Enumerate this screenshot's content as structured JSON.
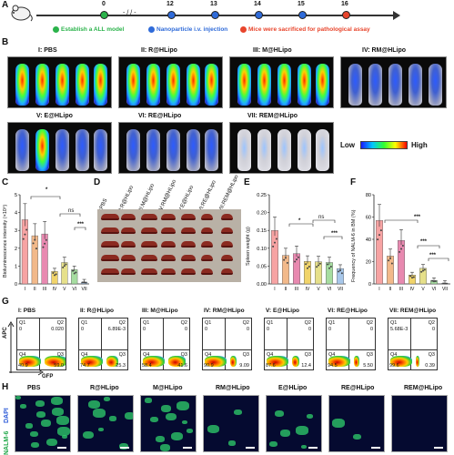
{
  "panelA": {
    "letter": "A",
    "days": [
      "0",
      "12",
      "13",
      "14",
      "15",
      "16"
    ],
    "legend": {
      "green": "Establish a ALL model",
      "blue": "Nanoparticle i.v. injection",
      "red": "Mice were sacrificed for pathological assay"
    },
    "colors": {
      "green": "#2bb34b",
      "blue": "#2f6bd9",
      "red": "#e8452c"
    }
  },
  "panelB": {
    "letter": "B",
    "groups": [
      "I: PBS",
      "II: R@HLipo",
      "III: M@HLipo",
      "IV: RM@HLipo",
      "V: E@HLipo",
      "VI: RE@HLipo",
      "VII: REM@HLipo"
    ],
    "colorbar_low": "Low",
    "colorbar_high": "High"
  },
  "panelC": {
    "letter": "C",
    "ylabel": "Bioluminescence intensity (×10⁹)",
    "ns": "ns",
    "sig1": "*",
    "sig2": "***"
  },
  "panelD": {
    "letter": "D",
    "labels": [
      "I:PBS",
      "II:R@HLipo",
      "III:M@HLipo",
      "IV:RM@HLipo",
      "V:E@HLipo",
      "VI:RE@HLipo",
      "VII:REM@HLipo"
    ]
  },
  "panelE": {
    "letter": "E",
    "ylabel": "Spleen weight (g)",
    "ns": "ns",
    "sig1": "*",
    "sig2": "***"
  },
  "panelF": {
    "letter": "F",
    "ylabel": "Frequency of NALM-6 in BM (%)",
    "sig1": "***",
    "sig2": "***",
    "sig3": "***"
  },
  "panelG": {
    "letter": "G",
    "yaxis": "APC",
    "xaxis": "GFP",
    "plots": [
      {
        "title": "I: PBS",
        "q2": "0.020",
        "q3": "59.0",
        "q4": "40.9",
        "q1": "0"
      },
      {
        "title": "II: R@HLipo",
        "q2": "6.89E-3",
        "q3": "25.3",
        "q4": "74.7",
        "q1": "0"
      },
      {
        "title": "III: M@HLipo",
        "q2": "0",
        "q3": "41.6",
        "q4": "58.4",
        "q1": "0"
      },
      {
        "title": "IV: RM@HLipo",
        "q2": "0",
        "q3": "9.09",
        "q4": "90.9",
        "q1": "0"
      },
      {
        "title": "V: E@HLipo",
        "q2": "0",
        "q3": "12.4",
        "q4": "87.6",
        "q1": "0"
      },
      {
        "title": "VI: RE@HLipo",
        "q2": "0",
        "q3": "5.50",
        "q4": "94.5",
        "q1": "0"
      },
      {
        "title": "VII: REM@HLipo",
        "q2": "0",
        "q3": "0.39",
        "q4": "99.6",
        "q1": "5.68E-3"
      }
    ],
    "qlabels": {
      "q1": "Q1",
      "q2": "Q2",
      "q3": "Q3",
      "q4": "Q4"
    }
  },
  "panelH": {
    "letter": "H",
    "titles": [
      "PBS",
      "R@HLipo",
      "M@HLipo",
      "RM@HLipo",
      "E@HLipo",
      "RE@HLipo",
      "REM@HLipo"
    ],
    "stain_dapi": "DAPI",
    "stain_nalm": "NALM-6"
  },
  "chart_data": [
    {
      "type": "bar",
      "panel": "C",
      "categories": [
        "I",
        "II",
        "III",
        "IV",
        "V",
        "VI",
        "VII"
      ],
      "values": [
        3.6,
        2.7,
        2.8,
        0.7,
        1.2,
        0.8,
        0.1
      ],
      "ylabel": "Bioluminescence intensity (×10⁹)",
      "ylim": [
        0,
        5
      ],
      "yticks": [
        "0",
        "1",
        "2",
        "3",
        "4",
        "5"
      ],
      "colors": [
        "#f7a3a3",
        "#f2b98a",
        "#e889b0",
        "#f1d46a",
        "#e6e08a",
        "#a6dda0",
        "#a7c7ea"
      ]
    },
    {
      "type": "bar",
      "panel": "E",
      "categories": [
        "I",
        "II",
        "III",
        "IV",
        "V",
        "VI",
        "VII"
      ],
      "values": [
        0.15,
        0.08,
        0.085,
        0.063,
        0.062,
        0.06,
        0.043
      ],
      "ylabel": "Spleen weight (g)",
      "ylim": [
        0,
        0.25
      ],
      "yticks": [
        "0.00",
        "0.05",
        "0.10",
        "0.15",
        "0.20",
        "0.25"
      ],
      "colors": [
        "#f7a3a3",
        "#f2b98a",
        "#e889b0",
        "#f1d46a",
        "#e6e08a",
        "#a6dda0",
        "#a7c7ea"
      ]
    },
    {
      "type": "bar",
      "panel": "F",
      "categories": [
        "I",
        "II",
        "III",
        "IV",
        "V",
        "VI",
        "VII"
      ],
      "values": [
        57,
        25,
        39,
        8,
        14,
        3,
        0.5
      ],
      "ylabel": "Frequency of NALM-6 in BM (%)",
      "ylim": [
        0,
        80
      ],
      "yticks": [
        "0",
        "20",
        "40",
        "60",
        "80"
      ],
      "colors": [
        "#f7a3a3",
        "#f2b98a",
        "#e889b0",
        "#f1d46a",
        "#e6e08a",
        "#a6dda0",
        "#a7c7ea"
      ]
    }
  ]
}
